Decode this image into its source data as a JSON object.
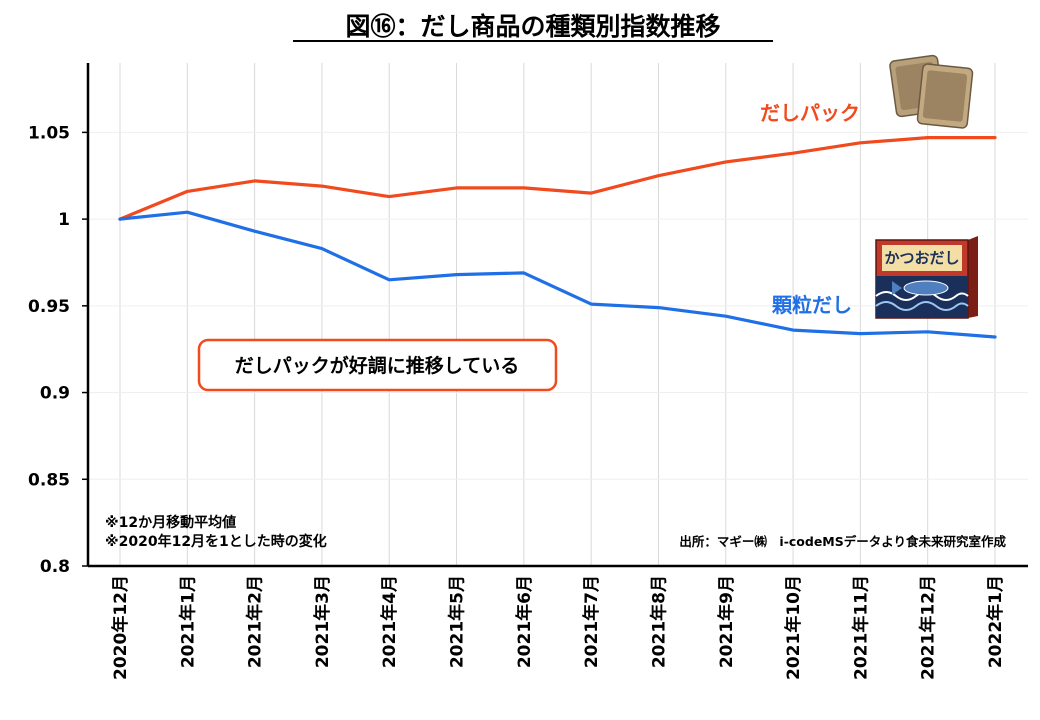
{
  "chart_data": {
    "type": "line",
    "title": "図⑯：だし商品の種類別指数推移",
    "categories": [
      "2020年12月",
      "2021年1月",
      "2021年2月",
      "2021年3月",
      "2021年4月",
      "2021年5月",
      "2021年6月",
      "2021年7月",
      "2021年8月",
      "2021年9月",
      "2021年10月",
      "2021年11月",
      "2021年12月",
      "2022年1月"
    ],
    "series": [
      {
        "name": "だしパック",
        "color": "#f04a1e",
        "values": [
          1.0,
          1.016,
          1.022,
          1.019,
          1.013,
          1.018,
          1.018,
          1.015,
          1.025,
          1.033,
          1.038,
          1.044,
          1.047,
          1.047
        ]
      },
      {
        "name": "顆粒だし",
        "color": "#1f6fe6",
        "values": [
          1.0,
          1.004,
          0.993,
          0.983,
          0.965,
          0.968,
          0.969,
          0.951,
          0.949,
          0.944,
          0.936,
          0.934,
          0.935,
          0.932
        ]
      }
    ],
    "yticks": [
      "0.8",
      "0.85",
      "0.9",
      "0.95",
      "1",
      "1.05"
    ],
    "ylim": [
      0.8,
      1.09
    ],
    "xlabel": "",
    "ylabel": "",
    "grid": "vertical",
    "annotations": {
      "callout": "だしパックが好調に推移している",
      "note1": "※12か月移動平均値",
      "note2": "※2020年12月を1とした時の変化",
      "source": "出所：マギー㈱　i-codeMSデータより食未来研究室作成",
      "box_label": "かつおだし"
    }
  }
}
